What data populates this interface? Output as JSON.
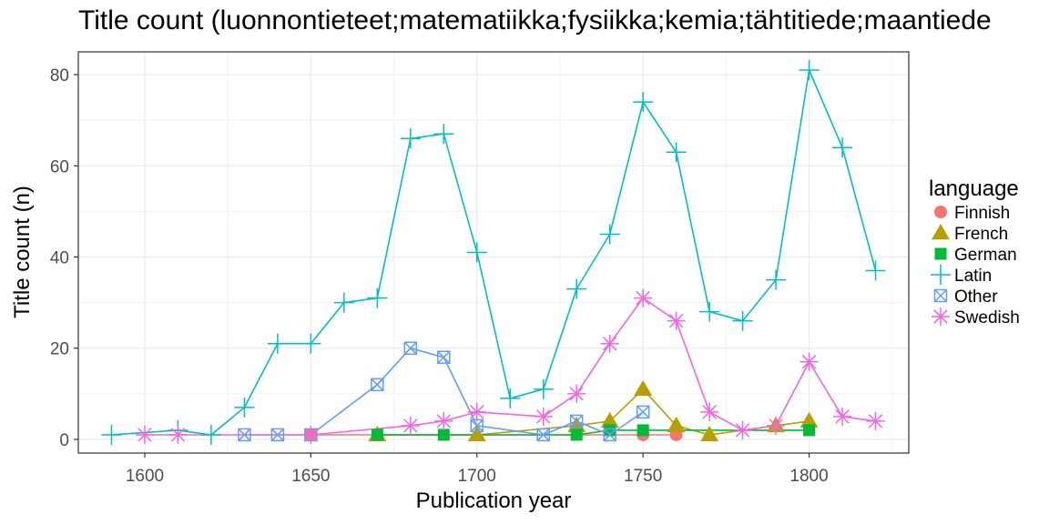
{
  "chart_data": {
    "type": "line",
    "title": "Title count (luonnontieteet;matematiikka;fysiikka;kemia;tähtitiede;maantiede",
    "xlabel": "Publication year",
    "ylabel": "Title count (n)",
    "xlim": [
      1580,
      1830
    ],
    "ylim": [
      -3,
      85
    ],
    "x_ticks": [
      1600,
      1650,
      1700,
      1750,
      1800
    ],
    "y_ticks": [
      0,
      20,
      40,
      60,
      80
    ],
    "grid": true,
    "legend_title": "language",
    "legend_position": "right",
    "series": [
      {
        "name": "Finnish",
        "color": "#F8766D",
        "marker": "circle",
        "points": [
          [
            1650,
            1
          ],
          [
            1750,
            1
          ],
          [
            1760,
            1
          ]
        ]
      },
      {
        "name": "French",
        "color": "#B79F00",
        "marker": "triangle",
        "points": [
          [
            1670,
            1
          ],
          [
            1700,
            1
          ],
          [
            1730,
            3
          ],
          [
            1740,
            4
          ],
          [
            1750,
            11
          ],
          [
            1760,
            3
          ],
          [
            1770,
            1
          ],
          [
            1790,
            3
          ],
          [
            1800,
            4
          ]
        ]
      },
      {
        "name": "German",
        "color": "#00BA38",
        "marker": "square",
        "points": [
          [
            1670,
            1
          ],
          [
            1690,
            1
          ],
          [
            1730,
            1
          ],
          [
            1740,
            2
          ],
          [
            1750,
            2
          ],
          [
            1800,
            2
          ]
        ]
      },
      {
        "name": "Latin",
        "color": "#00BFC4",
        "marker": "plus",
        "points": [
          [
            1590,
            1
          ],
          [
            1610,
            2
          ],
          [
            1620,
            1
          ],
          [
            1630,
            7
          ],
          [
            1640,
            21
          ],
          [
            1650,
            21
          ],
          [
            1660,
            30
          ],
          [
            1670,
            31
          ],
          [
            1680,
            66
          ],
          [
            1690,
            67
          ],
          [
            1700,
            41
          ],
          [
            1710,
            9
          ],
          [
            1720,
            11
          ],
          [
            1730,
            33
          ],
          [
            1740,
            45
          ],
          [
            1750,
            74
          ],
          [
            1760,
            63
          ],
          [
            1770,
            28
          ],
          [
            1780,
            26
          ],
          [
            1790,
            35
          ],
          [
            1800,
            81
          ],
          [
            1810,
            64
          ],
          [
            1820,
            37
          ]
        ]
      },
      {
        "name": "Other",
        "color": "#619CFF",
        "marker": "boxx",
        "points": [
          [
            1630,
            1
          ],
          [
            1640,
            1
          ],
          [
            1650,
            1
          ],
          [
            1670,
            12
          ],
          [
            1680,
            20
          ],
          [
            1690,
            18
          ],
          [
            1700,
            3
          ],
          [
            1720,
            1
          ],
          [
            1730,
            4
          ],
          [
            1740,
            1
          ],
          [
            1750,
            6
          ]
        ]
      },
      {
        "name": "Swedish",
        "color": "#F564E3",
        "marker": "asterisk",
        "points": [
          [
            1600,
            1
          ],
          [
            1610,
            1
          ],
          [
            1650,
            1
          ],
          [
            1680,
            3
          ],
          [
            1690,
            4
          ],
          [
            1700,
            6
          ],
          [
            1720,
            5
          ],
          [
            1730,
            10
          ],
          [
            1740,
            21
          ],
          [
            1750,
            31
          ],
          [
            1760,
            26
          ],
          [
            1770,
            6
          ],
          [
            1780,
            2
          ],
          [
            1790,
            3
          ],
          [
            1800,
            17
          ],
          [
            1810,
            5
          ],
          [
            1820,
            4
          ]
        ]
      }
    ]
  }
}
